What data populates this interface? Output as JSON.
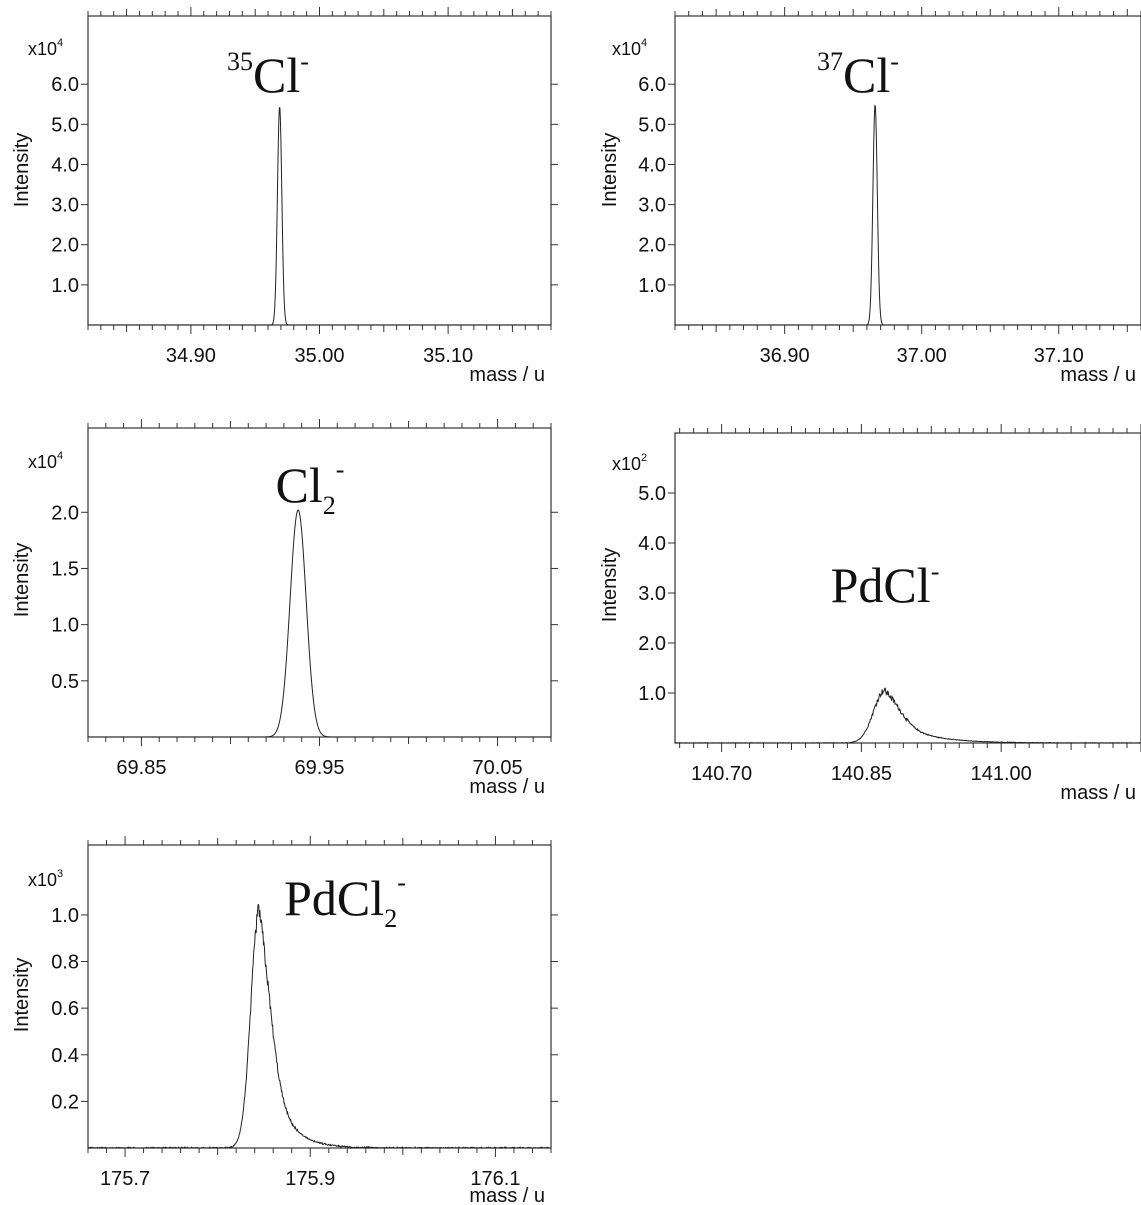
{
  "chart_data": [
    {
      "type": "line",
      "species": {
        "base": "Cl",
        "pre_sup": "35",
        "sub": "",
        "sup": "-"
      },
      "multiplier": {
        "base": "x10",
        "exp": "4"
      },
      "ylabel": "Intensity",
      "xlabel": "mass / u",
      "xlim": [
        34.82,
        35.18
      ],
      "ylim": [
        0,
        7.7
      ],
      "xticks": [
        34.9,
        35.0,
        35.1
      ],
      "xtick_labels": [
        "34.90",
        "35.00",
        "35.10"
      ],
      "yticks": [
        1.0,
        2.0,
        3.0,
        4.0,
        5.0,
        6.0
      ],
      "ytick_labels": [
        "1.0",
        "2.0",
        "3.0",
        "4.0",
        "5.0",
        "6.0"
      ],
      "peaks": [
        {
          "center": 34.969,
          "height": 5.45,
          "width": 0.0017
        }
      ],
      "noise": 0,
      "series": [
        {
          "peak_x": 34.969,
          "peak_y": 5.45
        }
      ]
    },
    {
      "type": "line",
      "species": {
        "base": "Cl",
        "pre_sup": "37",
        "sub": "",
        "sup": "-"
      },
      "multiplier": {
        "base": "x10",
        "exp": "4"
      },
      "ylabel": "Intensity",
      "xlabel": "mass / u",
      "xlim": [
        36.82,
        37.16
      ],
      "ylim": [
        0,
        7.7
      ],
      "xticks": [
        36.9,
        37.0,
        37.1
      ],
      "xtick_labels": [
        "36.90",
        "37.00",
        "37.10"
      ],
      "yticks": [
        1.0,
        2.0,
        3.0,
        4.0,
        5.0,
        6.0
      ],
      "ytick_labels": [
        "1.0",
        "2.0",
        "3.0",
        "4.0",
        "5.0",
        "6.0"
      ],
      "peaks": [
        {
          "center": 36.966,
          "height": 5.5,
          "width": 0.0016
        }
      ],
      "noise": 0,
      "series": [
        {
          "peak_x": 36.966,
          "peak_y": 5.5
        }
      ]
    },
    {
      "type": "line",
      "species": {
        "base": "Cl",
        "pre_sup": "",
        "sub": "2",
        "sup": "-"
      },
      "multiplier": {
        "base": "x10",
        "exp": "4"
      },
      "ylabel": "Intensity",
      "xlabel": "mass / u",
      "xlim": [
        69.82,
        70.08
      ],
      "ylim": [
        0,
        2.75
      ],
      "xticks": [
        69.85,
        69.95,
        70.05
      ],
      "xtick_labels": [
        "69.85",
        "69.95",
        "70.05"
      ],
      "yticks": [
        0.5,
        1.0,
        1.5,
        2.0
      ],
      "ytick_labels": [
        "0.5",
        "1.0",
        "1.5",
        "2.0"
      ],
      "peaks": [
        {
          "center": 69.938,
          "height": 2.02,
          "width": 0.0045
        }
      ],
      "noise": 0,
      "series": [
        {
          "peak_x": 69.938,
          "peak_y": 2.02
        }
      ]
    },
    {
      "type": "line",
      "species": {
        "base": "PdCl",
        "pre_sup": "",
        "sub": "",
        "sup": "-"
      },
      "multiplier": {
        "base": "x10",
        "exp": "2"
      },
      "ylabel": "Intensity",
      "xlabel": "mass / u",
      "xlim": [
        140.65,
        141.15
      ],
      "ylim": [
        0,
        6.2
      ],
      "xticks": [
        140.7,
        140.85,
        141.0
      ],
      "xtick_labels": [
        "140.70",
        "140.85",
        "141.00"
      ],
      "yticks": [
        1.0,
        2.0,
        3.0,
        4.0,
        5.0
      ],
      "ytick_labels": [
        "1.0",
        "2.0",
        "3.0",
        "4.0",
        "5.0"
      ],
      "peaks": [
        {
          "center": 140.875,
          "height": 1.05,
          "width": 0.012,
          "tail": 0.035
        }
      ],
      "noise": 0.05,
      "series": [
        {
          "peak_x": 140.875,
          "peak_y": 1.05
        }
      ]
    },
    {
      "type": "line",
      "species": {
        "base": "PdCl",
        "pre_sup": "",
        "sub": "2",
        "sup": "-"
      },
      "multiplier": {
        "base": "x10",
        "exp": "3"
      },
      "ylabel": "Intensity",
      "xlabel": "mass / u",
      "xlim": [
        175.66,
        176.16
      ],
      "ylim": [
        0,
        1.3
      ],
      "xticks": [
        175.7,
        175.9,
        176.1
      ],
      "xtick_labels": [
        "175.7",
        "175.9",
        "176.1"
      ],
      "yticks": [
        0.2,
        0.4,
        0.6,
        0.8,
        1.0
      ],
      "ytick_labels": [
        "0.2",
        "0.4",
        "0.6",
        "0.8",
        "1.0"
      ],
      "peaks": [
        {
          "center": 175.845,
          "height": 1.02,
          "width": 0.009,
          "tail": 0.02
        }
      ],
      "noise": 0.03,
      "series": [
        {
          "peak_x": 175.845,
          "peak_y": 1.05
        }
      ]
    }
  ]
}
